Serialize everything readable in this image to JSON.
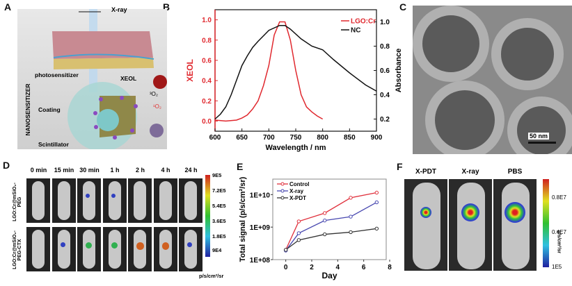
{
  "panels": {
    "a": "A",
    "b": "B",
    "c": "C",
    "d": "D",
    "e": "E",
    "f": "F"
  },
  "panel_a": {
    "xray": "X-ray",
    "photosensitizer": "photosensitizer",
    "xeol": "XEOL",
    "coating": "Coating",
    "scintillator": "Scintillator",
    "nanosensitizer": "NANOSENSITIZER",
    "singlet_o2": "¹O₂",
    "triplet_o2": "³O₂"
  },
  "panel_c": {
    "scale_bar": "50 nm"
  },
  "panel_d": {
    "times": [
      "0 min",
      "15 min",
      "30 min",
      "1 h",
      "2 h",
      "4 h",
      "24 h"
    ],
    "row_labels": [
      "LGO:Cr@mSiO₂-PEG",
      "LGO:Cr@mSiO₂-PEG-CTX"
    ],
    "colorbar_ticks": [
      "9E5",
      "7.2E5",
      "5.4E5",
      "3.6E5",
      "1.8E5",
      "9E4"
    ],
    "unit": "p/s/cm²/sr",
    "signal_level": [
      [
        0,
        0,
        0.05,
        0.05,
        0,
        0,
        0
      ],
      [
        0,
        0.2,
        0.5,
        0.55,
        0.75,
        0.8,
        0.15
      ]
    ]
  },
  "panel_f": {
    "groups": [
      "X-PDT",
      "X-ray",
      "PBS"
    ],
    "colorbar_ticks": [
      "0.8E7",
      "0.4E7",
      "1E5"
    ],
    "unit": "p/s/cm²/sr"
  },
  "chart_data": [
    {
      "type": "line",
      "panel": "B",
      "xlabel": "Wavelength / nm",
      "ylabel": "XEOL",
      "y2label": "Absorbance",
      "xlim": [
        600,
        900
      ],
      "ylim": [
        -0.1,
        1.1
      ],
      "y2lim": [
        0.1,
        1.1
      ],
      "xticks": [
        "600",
        "650",
        "700",
        "750",
        "800",
        "850",
        "900"
      ],
      "yticks": [
        "0.0",
        "0.2",
        "0.4",
        "0.6",
        "0.8",
        "1.0"
      ],
      "y2ticks": [
        "0.2",
        "0.4",
        "0.6",
        "0.8",
        "1.0"
      ],
      "series": [
        {
          "name": "LGO:Cr",
          "axis": "left",
          "color": "#e0282e",
          "x": [
            600,
            620,
            640,
            650,
            660,
            670,
            680,
            690,
            700,
            710,
            720,
            730,
            740,
            750,
            760,
            770,
            780,
            790,
            800
          ],
          "y": [
            0.01,
            0.0,
            0.01,
            0.03,
            0.06,
            0.12,
            0.2,
            0.35,
            0.55,
            0.85,
            0.98,
            0.98,
            0.8,
            0.5,
            0.26,
            0.14,
            0.09,
            0.05,
            0.02
          ]
        },
        {
          "name": "NC",
          "axis": "right",
          "color": "#111111",
          "x": [
            600,
            610,
            620,
            630,
            640,
            650,
            660,
            670,
            680,
            700,
            720,
            730,
            740,
            760,
            780,
            800,
            820,
            850,
            880,
            900
          ],
          "y": [
            0.2,
            0.24,
            0.3,
            0.4,
            0.52,
            0.64,
            0.72,
            0.79,
            0.84,
            0.93,
            0.97,
            0.97,
            0.94,
            0.86,
            0.8,
            0.77,
            0.69,
            0.58,
            0.48,
            0.43
          ]
        }
      ]
    },
    {
      "type": "line",
      "panel": "E",
      "xlabel": "Day",
      "ylabel": "Total signal (p/s/cm²/sr)",
      "xlim": [
        -1,
        8
      ],
      "ylim": [
        100000000.0,
        30000000000.0
      ],
      "yscale": "log",
      "xticks": [
        "0",
        "2",
        "4",
        "6",
        "8"
      ],
      "yticks": [
        "1E+08",
        "1E+09",
        "1E+10"
      ],
      "series": [
        {
          "name": "Control",
          "color": "#e0303c",
          "x": [
            0,
            1,
            3,
            5,
            7
          ],
          "y": [
            200000000.0,
            1500000000.0,
            2700000000.0,
            8000000000.0,
            11500000000.0
          ]
        },
        {
          "name": "X-ray",
          "color": "#4848b0",
          "x": [
            0,
            1,
            3,
            5,
            7
          ],
          "y": [
            190000000.0,
            650000000.0,
            1600000000.0,
            2100000000.0,
            5800000000.0
          ]
        },
        {
          "name": "X-PDT",
          "color": "#333333",
          "x": [
            0,
            1,
            3,
            5,
            7
          ],
          "y": [
            200000000.0,
            400000000.0,
            600000000.0,
            700000000.0,
            900000000.0
          ]
        }
      ]
    }
  ]
}
